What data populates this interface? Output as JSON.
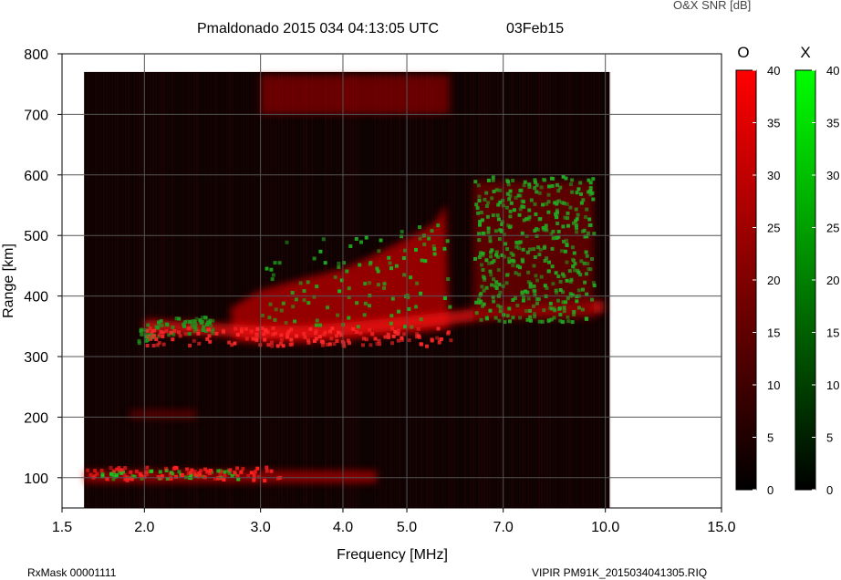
{
  "header": {
    "title": "Pmaldonado 2015 034 04:13:05 UTC",
    "date": "03Feb15",
    "colorbar_title": "O&X SNR [dB]"
  },
  "footer": {
    "left": "RxMask 00001111",
    "right": "VIPIR  PM91K_2015034041305.RIQ"
  },
  "chart_data": {
    "type": "heatmap",
    "title": "Pmaldonado 2015 034 04:13:05 UTC",
    "subtitle": "03Feb15",
    "xlabel": "Frequency [MHz]",
    "ylabel": "Range [km]",
    "x_scale": "log",
    "xlim": [
      1.5,
      15.0
    ],
    "ylim": [
      50,
      800
    ],
    "x_ticks": [
      1.5,
      2.0,
      3.0,
      4.0,
      5.0,
      7.0,
      10.0,
      15.0
    ],
    "x_tick_labels": [
      "1.5",
      "2.0",
      "3.0",
      "4.0",
      "5.0",
      "7.0",
      "10.0",
      "15.0"
    ],
    "y_ticks": [
      100,
      200,
      300,
      400,
      500,
      600,
      700,
      800
    ],
    "y_tick_labels": [
      "100",
      "200",
      "300",
      "400",
      "500",
      "600",
      "700",
      "800"
    ],
    "grid": true,
    "data_extent": {
      "freq": [
        1.62,
        10.15
      ],
      "range": [
        50,
        770
      ]
    },
    "colorbars": [
      {
        "name": "O",
        "ticks": [
          0,
          5,
          10,
          15,
          20,
          25,
          30,
          35,
          40
        ],
        "tick_labels": [
          "0",
          "5",
          "10",
          "15",
          "20",
          "25",
          "30",
          "35",
          "40"
        ],
        "color_low": "#000000",
        "color_high": "#ff0000"
      },
      {
        "name": "X",
        "ticks": [
          0,
          5,
          10,
          15,
          20,
          25,
          30,
          35,
          40
        ],
        "tick_labels": [
          "0",
          "5",
          "10",
          "15",
          "20",
          "25",
          "30",
          "35",
          "40"
        ],
        "color_low": "#000000",
        "color_high": "#00ff00"
      }
    ],
    "o_trace": {
      "freq": [
        2.0,
        2.5,
        3.0,
        3.5,
        4.0,
        4.5,
        5.0,
        5.5,
        6.0,
        6.5,
        7.0,
        8.0,
        9.0,
        10.0
      ],
      "range": [
        340,
        335,
        330,
        330,
        335,
        340,
        345,
        350,
        355,
        360,
        362,
        365,
        368,
        372
      ]
    },
    "o_layer_top": {
      "freq": [
        2.7,
        3.0,
        3.5,
        4.0,
        4.5,
        5.0,
        5.5,
        5.8
      ],
      "range": [
        380,
        410,
        430,
        445,
        470,
        495,
        520,
        560
      ]
    },
    "x_trace": {
      "freq": [
        1.95,
        2.1,
        2.3,
        2.5
      ],
      "range": [
        330,
        340,
        345,
        345
      ]
    }
  }
}
